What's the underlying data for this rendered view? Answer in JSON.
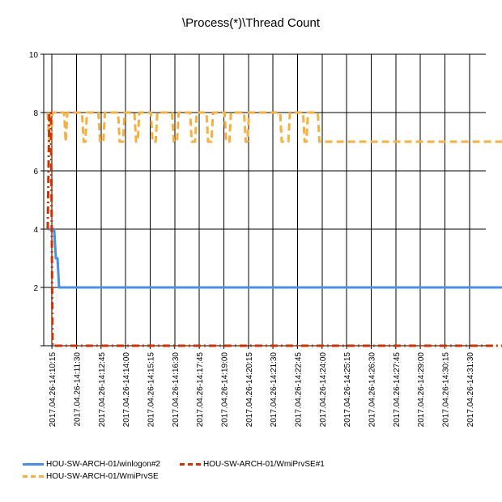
{
  "chart_data": {
    "type": "line",
    "title": "\\Process(*)\\Thread Count",
    "xlabel": "",
    "ylabel": "",
    "ylim": [
      0,
      10
    ],
    "yticks": [
      2,
      4,
      6,
      8,
      10
    ],
    "grid": true,
    "legend_position": "bottom-left",
    "x_tick_labels": [
      "2017.04.26-14:10:15",
      "2017.04.26-14:11:30",
      "2017.04.26-14:12:45",
      "2017.04.26-14:14:00",
      "2017.04.26-14:15:15",
      "2017.04.26-14:16:30",
      "2017.04.26-14:17:45",
      "2017.04.26-14:19:00",
      "2017.04.26-14:20:15",
      "2017.04.26-14:21:30",
      "2017.04.26-14:22:45",
      "2017.04.26-14:24:00",
      "2017.04.26-14:25:15",
      "2017.04.26-14:26:30",
      "2017.04.26-14:27:45",
      "2017.04.26-14:29:00",
      "2017.04.26-14:30:15",
      "2017.04.26-14:31:30"
    ],
    "x_start": "2017.04.26-14:09:50",
    "x_end": "2017.04.26-14:32:20",
    "x_interval_seconds": 5,
    "series": [
      {
        "name": "HOU-SW-ARCH-01/winlogon#2",
        "color": "#4a90e2",
        "dash": "solid",
        "values": [
          4,
          4,
          4,
          4,
          4,
          3,
          3,
          2,
          2,
          2,
          2,
          2,
          2,
          2,
          2,
          2,
          2,
          2,
          2,
          2,
          2,
          2,
          2,
          2,
          2,
          2,
          2,
          2,
          2,
          2,
          2,
          2,
          2,
          2,
          2,
          2,
          2,
          2,
          2,
          2,
          2,
          2,
          2,
          2,
          2,
          2,
          2,
          2,
          2,
          2,
          2,
          2,
          2,
          2,
          2,
          2,
          2,
          2,
          2,
          2,
          2,
          2,
          2,
          2,
          2,
          2,
          2,
          2,
          2,
          2,
          2,
          2,
          2,
          2,
          2,
          2,
          2,
          2,
          2,
          2,
          2,
          2,
          2,
          2,
          2,
          2,
          2,
          2,
          2,
          2,
          2,
          2,
          2,
          2,
          2,
          2,
          2,
          2,
          2,
          2,
          2,
          2,
          2,
          2,
          2,
          2,
          2,
          2,
          2,
          2,
          2,
          2,
          2,
          2,
          2,
          2,
          2,
          2,
          2,
          2,
          2,
          2,
          2,
          2,
          2,
          2,
          2,
          2,
          2,
          2,
          2,
          2,
          2,
          2,
          2,
          2,
          2,
          2,
          2,
          2,
          2,
          2,
          2,
          2,
          2,
          2,
          2,
          2,
          2,
          2,
          2,
          2,
          2,
          2,
          2,
          2,
          2,
          2,
          2,
          2,
          2,
          2,
          2,
          2,
          2,
          2,
          2,
          2,
          2,
          2,
          2,
          2,
          2,
          2,
          2,
          2,
          2,
          2,
          2,
          2,
          2,
          2,
          2,
          2,
          2,
          2,
          2,
          2,
          2,
          2,
          2,
          2,
          2,
          2,
          2,
          2,
          2,
          2,
          2,
          2,
          2,
          2,
          2,
          2,
          2,
          2,
          2,
          2,
          2,
          2,
          2,
          2,
          2,
          2,
          2,
          2,
          2,
          2,
          2,
          2,
          2,
          2,
          2,
          2,
          2,
          2,
          2,
          2,
          2,
          2,
          2,
          2,
          2,
          2,
          2,
          2,
          2,
          2,
          2,
          2,
          2,
          2,
          2,
          2,
          2,
          2,
          2,
          2,
          2,
          2,
          2,
          2,
          2,
          2,
          2,
          2,
          2,
          2,
          2,
          2,
          2,
          2,
          2,
          2,
          2,
          2,
          2,
          2,
          2,
          2,
          2,
          2,
          2,
          2,
          2,
          2,
          2,
          2,
          2,
          2,
          2,
          2,
          2,
          2,
          2,
          2,
          2,
          2,
          2,
          2,
          2,
          2
        ]
      },
      {
        "name": "HOU-SW-ARCH-01/WmiPrvSE#1",
        "color": "#cc3300",
        "dash": "dashdot",
        "values": [
          4,
          8,
          8,
          0,
          0,
          0,
          0,
          0,
          0,
          0,
          0,
          0,
          0,
          0,
          0,
          0,
          0,
          0,
          0,
          0,
          0,
          0,
          0,
          0,
          0,
          0,
          0,
          0,
          0,
          0,
          0,
          0,
          0,
          0,
          0,
          0,
          0,
          0,
          0,
          0,
          0,
          0,
          0,
          0,
          0,
          0,
          0,
          0,
          0,
          0,
          0,
          0,
          0,
          0,
          0,
          0,
          0,
          0,
          0,
          0,
          0,
          0,
          0,
          0,
          0,
          0,
          0,
          0,
          0,
          0,
          0,
          0,
          0,
          0,
          0,
          0,
          0,
          0,
          0,
          0,
          0,
          0,
          0,
          0,
          0,
          0,
          0,
          0,
          0,
          0,
          0,
          0,
          0,
          0,
          0,
          0,
          0,
          0,
          0,
          0,
          0,
          0,
          0,
          0,
          0,
          0,
          0,
          0,
          0,
          0,
          0,
          0,
          0,
          0,
          0,
          0,
          0,
          0,
          0,
          0,
          0,
          0,
          0,
          0,
          0,
          0,
          0,
          0,
          0,
          0,
          0,
          0,
          0,
          0,
          0,
          0,
          0,
          0,
          0,
          0,
          0,
          0,
          0,
          0,
          0,
          0,
          0,
          0,
          0,
          0,
          0,
          0,
          0,
          0,
          0,
          0,
          0,
          0,
          0,
          0,
          0,
          0,
          0,
          0,
          0,
          0,
          0,
          0,
          0,
          0,
          0,
          0,
          0,
          0,
          0,
          0,
          0,
          0,
          0,
          0,
          0,
          0,
          0,
          0,
          0,
          0,
          0,
          0,
          0,
          0,
          0,
          0,
          0,
          0,
          0,
          0,
          0,
          0,
          0,
          0,
          0,
          0,
          0,
          0,
          0,
          0,
          0,
          0,
          0,
          0,
          0,
          0,
          0,
          0,
          0,
          0,
          0,
          0,
          0,
          0,
          0,
          0,
          0,
          0,
          0,
          0,
          0,
          0,
          0,
          0,
          0,
          0,
          0,
          0,
          0,
          0,
          0,
          0,
          0,
          0,
          0,
          0,
          0,
          0,
          0,
          0,
          0,
          0,
          0,
          0,
          0,
          0,
          0,
          0,
          0,
          0,
          0,
          0,
          0,
          0,
          0,
          0,
          0,
          0,
          0,
          0,
          0,
          0,
          0,
          0,
          0,
          0,
          0,
          0,
          0,
          0,
          0,
          0,
          0,
          0,
          0,
          0,
          0,
          0,
          0,
          0,
          0
        ]
      },
      {
        "name": "HOU-SW-ARCH-01/WmiPrvSE",
        "color": "#f5b041",
        "dash": "dashed",
        "values": [
          8,
          7,
          7,
          8,
          8,
          8,
          8,
          8,
          8,
          8,
          8,
          7,
          8,
          8,
          8,
          8,
          8,
          8,
          8,
          8,
          8,
          8,
          7,
          7,
          8,
          8,
          8,
          8,
          8,
          8,
          8,
          8,
          7,
          7,
          7,
          8,
          8,
          8,
          8,
          8,
          8,
          8,
          8,
          8,
          7,
          7,
          7,
          8,
          8,
          8,
          8,
          8,
          8,
          8,
          7,
          7,
          8,
          8,
          8,
          8,
          8,
          8,
          8,
          8,
          7,
          7,
          7,
          8,
          8,
          8,
          8,
          8,
          8,
          8,
          8,
          8,
          8,
          7,
          7,
          7,
          8,
          8,
          8,
          8,
          8,
          8,
          8,
          8,
          7,
          7,
          7,
          8,
          8,
          8,
          8,
          8,
          8,
          8,
          7,
          7,
          7,
          8,
          8,
          8,
          8,
          8,
          8,
          8,
          8,
          7,
          7,
          7,
          8,
          8,
          8,
          8,
          8,
          8,
          8,
          8,
          8,
          7,
          7,
          8,
          8,
          8,
          8,
          8,
          8,
          8,
          8,
          8,
          8,
          8,
          8,
          8,
          8,
          8,
          8,
          8,
          8,
          8,
          8,
          7,
          7,
          7,
          7,
          7,
          8,
          8,
          8,
          8,
          8,
          8,
          8,
          8,
          8,
          7,
          7,
          8,
          8,
          8,
          8,
          8,
          8,
          8,
          7,
          7,
          7,
          7,
          7,
          7,
          7,
          7,
          7,
          7,
          7,
          7,
          7,
          7,
          7,
          7,
          7,
          7,
          7,
          7,
          7,
          7,
          7,
          7,
          7,
          7,
          7,
          7,
          7,
          7,
          7,
          7,
          7,
          7,
          7,
          7,
          7,
          7,
          7,
          7,
          7,
          7,
          7,
          7,
          7,
          7,
          7,
          7,
          7,
          7,
          7,
          7,
          7,
          7,
          7,
          7,
          7,
          7,
          7,
          7,
          7,
          7,
          7,
          7,
          7,
          7,
          7,
          7,
          7,
          7,
          7,
          7,
          7,
          7,
          7,
          7,
          7,
          7,
          7,
          7,
          7,
          7,
          7,
          7,
          7,
          7,
          7,
          7,
          7,
          7,
          7,
          7,
          7,
          7,
          7,
          7,
          7,
          7,
          7,
          7,
          7,
          7,
          7,
          7,
          7,
          7,
          7,
          7,
          7,
          7,
          7,
          7,
          7,
          7,
          7,
          7,
          7
        ]
      }
    ]
  }
}
